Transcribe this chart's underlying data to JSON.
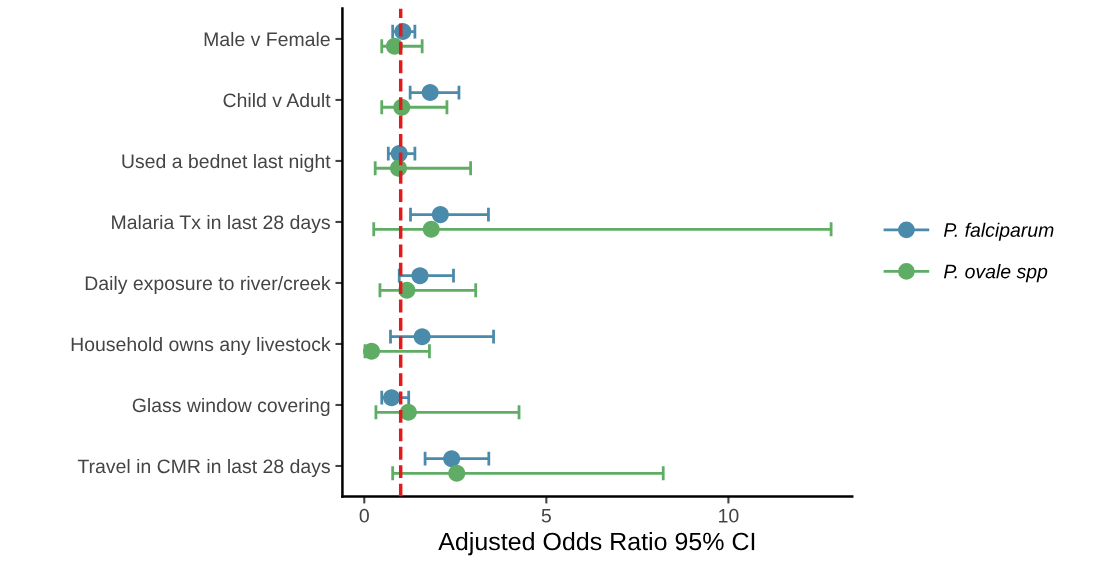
{
  "chart_data": {
    "type": "scatter",
    "orientation": "horizontal",
    "xlabel": "Adjusted Odds Ratio 95% CI",
    "categories": [
      "Male v Female",
      "Child v Adult",
      "Used a bednet last night",
      "Malaria Tx in last 28 days",
      "Daily exposure to river/creek",
      "Household owns any livestock",
      "Glass window covering",
      "Travel in CMR in last 28 days"
    ],
    "series": [
      {
        "name": "P. falciparum",
        "color": "#4a8aaa",
        "values": [
          1.06,
          1.81,
          0.96,
          2.09,
          1.53,
          1.59,
          0.75,
          2.4
        ],
        "errors": [
          [
            0.78,
            1.39
          ],
          [
            1.26,
            2.6
          ],
          [
            0.66,
            1.39
          ],
          [
            1.27,
            3.41
          ],
          [
            0.96,
            2.45
          ],
          [
            0.72,
            3.55
          ],
          [
            0.48,
            1.22
          ],
          [
            1.67,
            3.42
          ]
        ]
      },
      {
        "name": "P. ovale spp",
        "color": "#5fad65",
        "values": [
          0.83,
          1.03,
          0.94,
          1.84,
          1.17,
          0.2,
          1.21,
          2.54
        ],
        "errors": [
          [
            0.48,
            1.59
          ],
          [
            0.48,
            2.27
          ],
          [
            0.3,
            2.92
          ],
          [
            0.26,
            12.82
          ],
          [
            0.43,
            3.06
          ],
          [
            0.02,
            1.79
          ],
          [
            0.32,
            4.25
          ],
          [
            0.78,
            8.21
          ]
        ]
      }
    ],
    "xlim": [
      -0.6,
      13.4
    ],
    "xticks": [
      0,
      5,
      10
    ],
    "ref_lines": [
      {
        "axis": "x",
        "value": 1,
        "color": "#e31a1c",
        "line_style": "dashed"
      }
    ],
    "marker": "circle",
    "legend": "right",
    "grid": false
  }
}
